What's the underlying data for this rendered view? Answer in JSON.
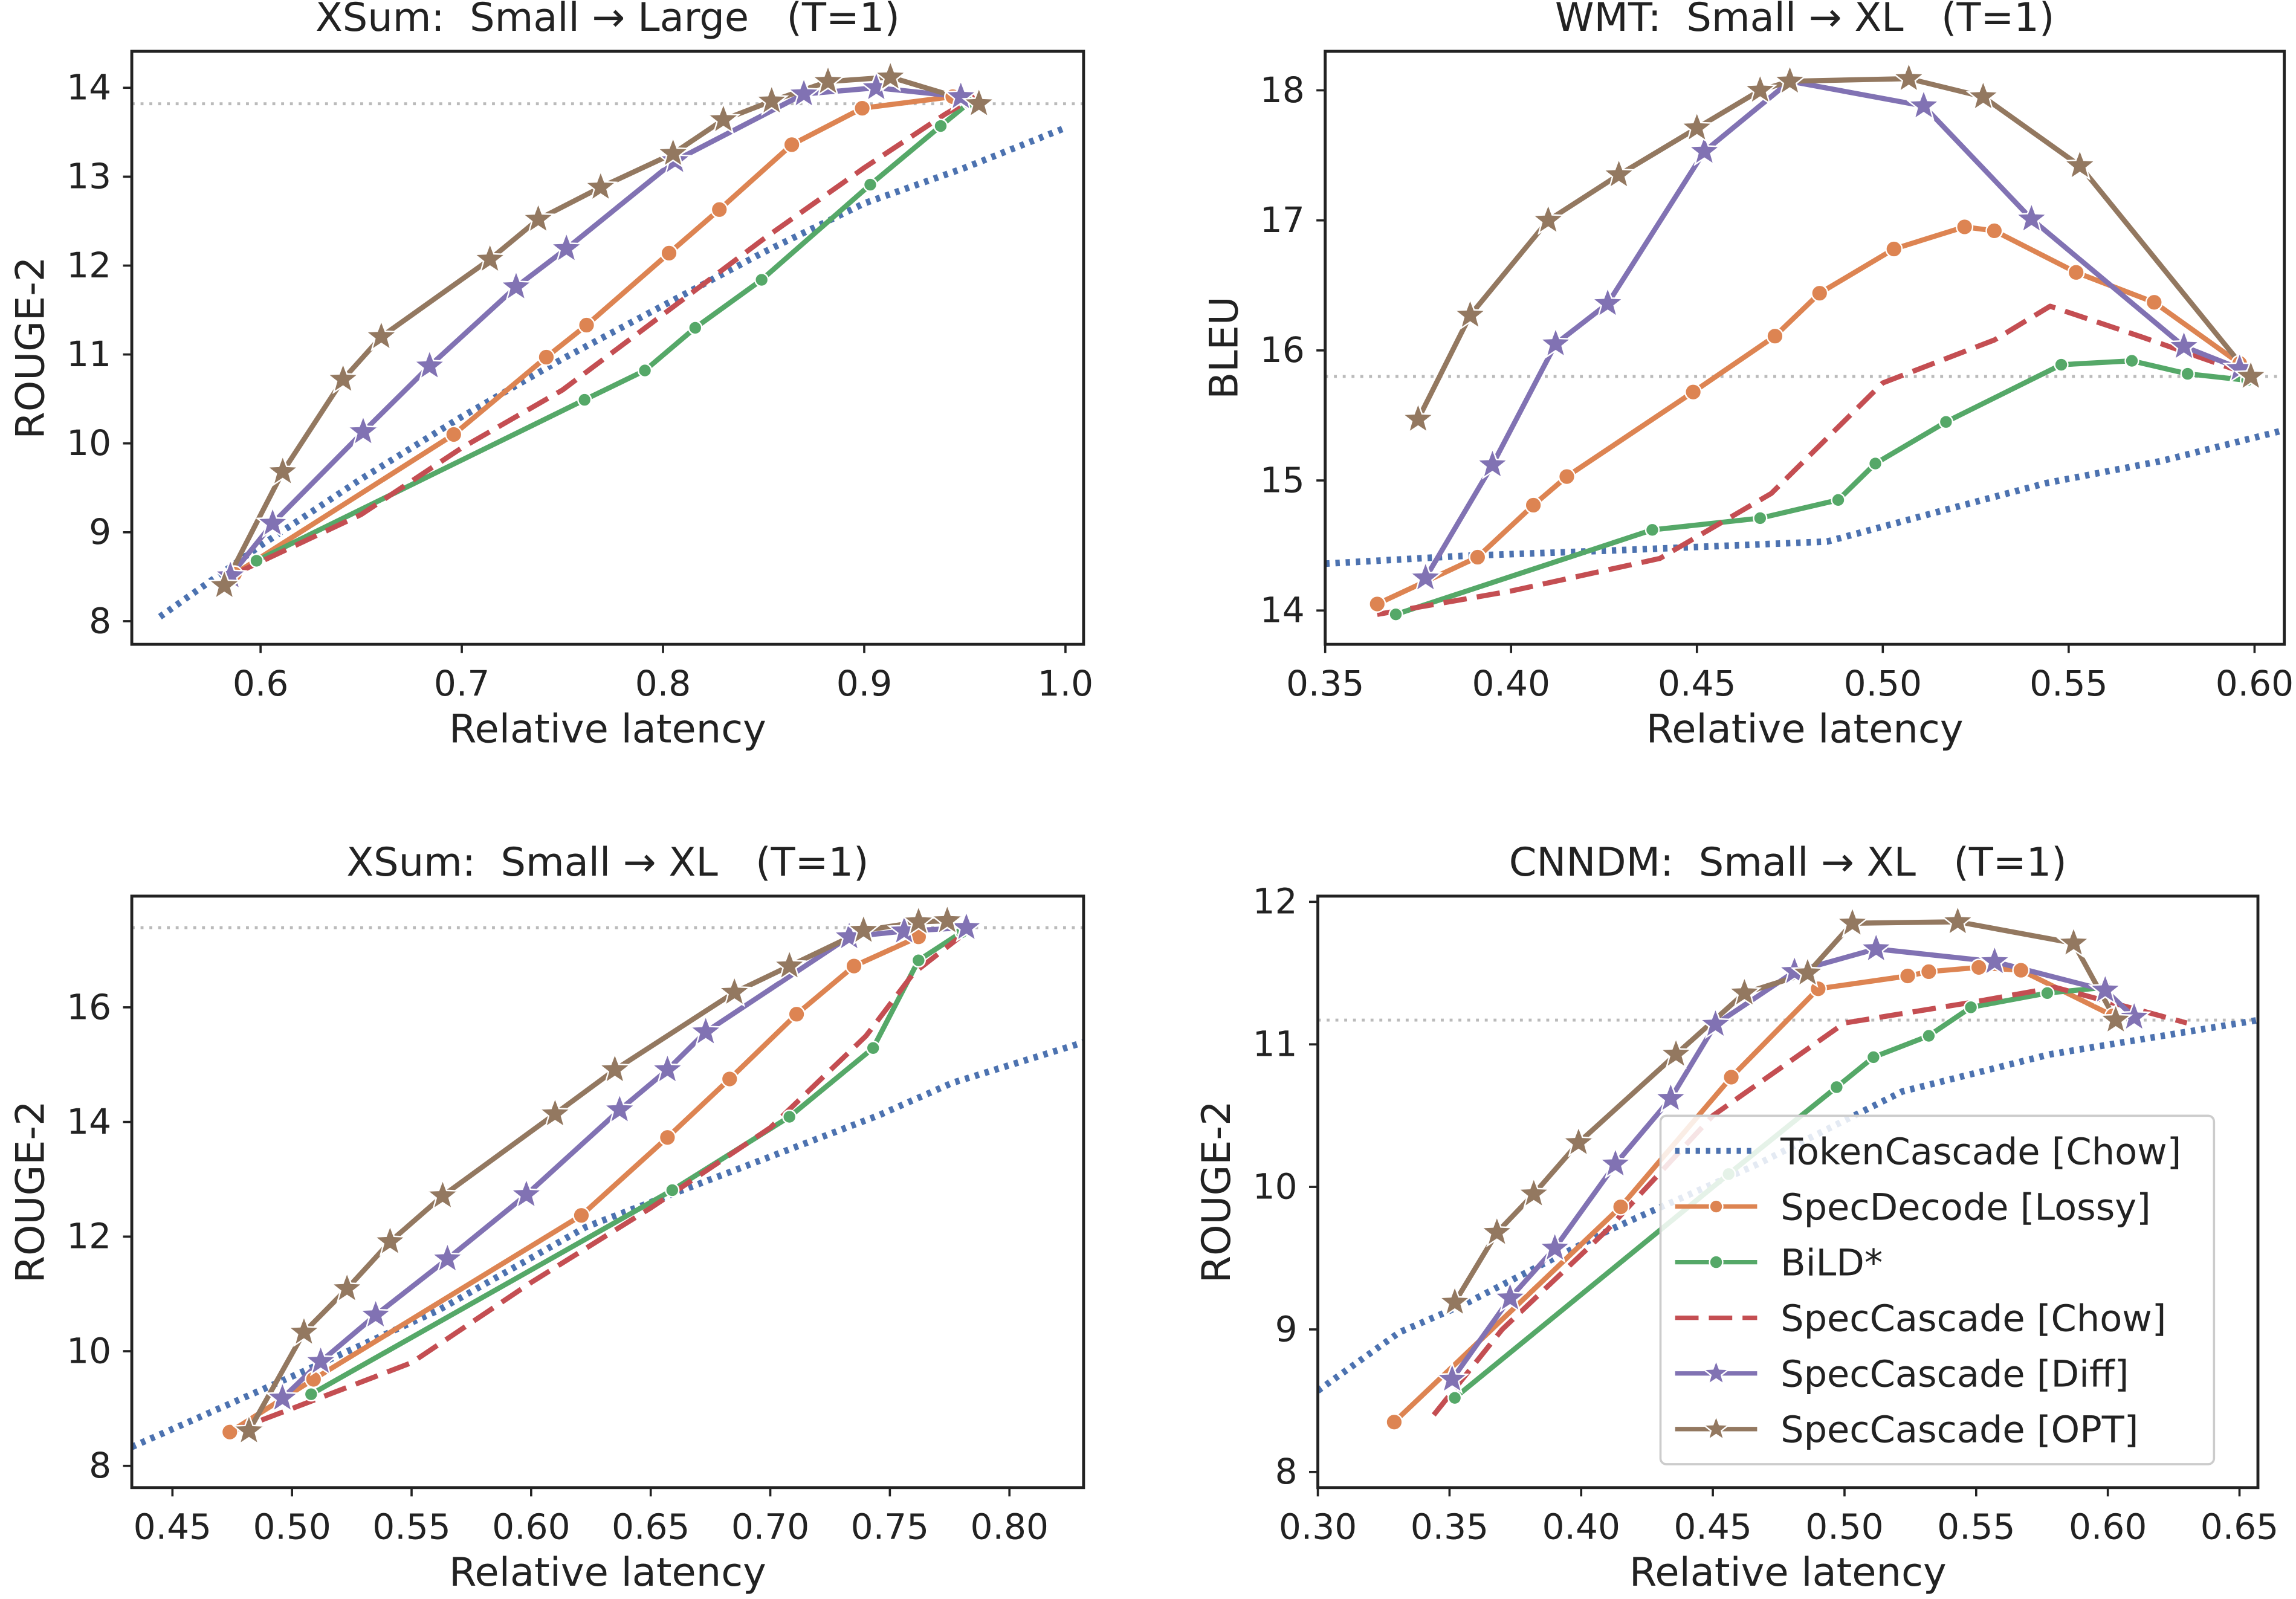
{
  "chart_data": [
    {
      "type": "line",
      "title": "XSum:  Small → Large   (T=1)",
      "xlabel": "Relative latency",
      "ylabel": "ROUGE-2",
      "xlim": [
        0.536,
        1.009
      ],
      "ylim": [
        7.74,
        14.41
      ],
      "xticks": [
        0.6,
        0.7,
        0.8,
        0.9,
        {
          "value": 1,
          "label": "1.0"
        }
      ],
      "yticks": [
        8,
        9,
        10,
        11,
        12,
        13,
        14
      ],
      "reference_line": 13.82,
      "series": [
        {
          "color": "#4c72b0",
          "linestyle": "dotted",
          "marker": "none",
          "x": [
            0.55,
            0.6,
            0.65,
            0.7,
            0.75,
            0.8,
            0.85,
            0.9,
            0.95,
            1.0
          ],
          "values": [
            8.05,
            8.85,
            9.6,
            10.3,
            10.95,
            11.55,
            12.15,
            12.7,
            13.1,
            13.55
          ]
        },
        {
          "color": "#dd8452",
          "linestyle": "solid",
          "marker": "circle",
          "x": [
            0.587,
            0.696,
            0.742,
            0.762,
            0.803,
            0.828,
            0.864,
            0.899,
            0.944
          ],
          "values": [
            8.53,
            10.1,
            10.97,
            11.33,
            12.14,
            12.63,
            13.36,
            13.77,
            13.9
          ]
        },
        {
          "color": "#55a868",
          "linestyle": "solid",
          "marker": "circle",
          "x": [
            0.598,
            0.761,
            0.791,
            0.816,
            0.849,
            0.903,
            0.938,
            0.952
          ],
          "values": [
            8.68,
            10.49,
            10.82,
            11.3,
            11.84,
            12.91,
            13.57,
            13.83
          ]
        },
        {
          "color": "#c44e52",
          "linestyle": "dashed",
          "marker": "none",
          "x": [
            0.587,
            0.65,
            0.7,
            0.75,
            0.8,
            0.85,
            0.9,
            0.94,
            0.955
          ],
          "values": [
            8.53,
            9.2,
            9.95,
            10.6,
            11.45,
            12.3,
            13.1,
            13.7,
            13.9
          ]
        },
        {
          "color": "#8172b3",
          "linestyle": "solid",
          "marker": "star",
          "x": [
            0.585,
            0.606,
            0.651,
            0.684,
            0.727,
            0.752,
            0.806,
            0.87,
            0.906,
            0.948
          ],
          "values": [
            8.51,
            9.1,
            10.13,
            10.87,
            11.76,
            12.19,
            13.18,
            13.93,
            14.0,
            13.9
          ]
        },
        {
          "color": "#937860",
          "linestyle": "solid",
          "marker": "star",
          "x": [
            0.582,
            0.611,
            0.641,
            0.66,
            0.714,
            0.738,
            0.769,
            0.805,
            0.83,
            0.854,
            0.882,
            0.913,
            0.957
          ],
          "values": [
            8.4,
            9.68,
            10.72,
            11.2,
            12.07,
            12.52,
            12.88,
            13.26,
            13.64,
            13.85,
            14.07,
            14.12,
            13.82
          ]
        }
      ]
    },
    {
      "type": "line",
      "title": "WMT:  Small → XL   (T=1)",
      "xlabel": "Relative latency",
      "ylabel": "BLEU",
      "xlim": [
        0.35,
        0.608
      ],
      "ylim": [
        13.74,
        18.3
      ],
      "xticks": [
        0.35,
        {
          "value": 0.4,
          "label": "0.40"
        },
        0.45,
        {
          "value": 0.5,
          "label": "0.50"
        },
        0.55,
        {
          "value": 0.6,
          "label": "0.60"
        }
      ],
      "yticks": [
        14,
        15,
        16,
        17,
        18
      ],
      "reference_line": 15.8,
      "series": [
        {
          "color": "#4c72b0",
          "linestyle": "dotted",
          "marker": "none",
          "x": [
            0.35,
            0.387,
            0.426,
            0.485,
            0.515,
            0.544,
            0.575,
            0.607
          ],
          "values": [
            14.36,
            14.42,
            14.46,
            14.53,
            14.76,
            14.98,
            15.15,
            15.38
          ]
        },
        {
          "color": "#dd8452",
          "linestyle": "solid",
          "marker": "circle",
          "x": [
            0.364,
            0.391,
            0.406,
            0.415,
            0.449,
            0.471,
            0.483,
            0.503,
            0.522,
            0.53,
            0.552,
            0.573,
            0.596
          ],
          "values": [
            14.05,
            14.41,
            14.81,
            15.03,
            15.68,
            16.11,
            16.44,
            16.78,
            16.95,
            16.92,
            16.6,
            16.37,
            15.9
          ]
        },
        {
          "color": "#55a868",
          "linestyle": "solid",
          "marker": "circle",
          "x": [
            0.369,
            0.438,
            0.467,
            0.488,
            0.498,
            0.517,
            0.548,
            0.567,
            0.582,
            0.598
          ],
          "values": [
            13.97,
            14.62,
            14.71,
            14.85,
            15.13,
            15.45,
            15.89,
            15.92,
            15.82,
            15.77
          ]
        },
        {
          "color": "#c44e52",
          "linestyle": "dashed",
          "marker": "none",
          "x": [
            0.364,
            0.4,
            0.44,
            0.47,
            0.5,
            0.53,
            0.545,
            0.57,
            0.595
          ],
          "values": [
            13.97,
            14.15,
            14.4,
            14.9,
            15.75,
            16.08,
            16.34,
            16.1,
            15.85
          ]
        },
        {
          "color": "#8172b3",
          "linestyle": "solid",
          "marker": "star",
          "x": [
            0.377,
            0.395,
            0.412,
            0.426,
            0.452,
            0.475,
            0.511,
            0.54,
            0.581,
            0.596
          ],
          "values": [
            14.25,
            15.12,
            16.05,
            16.36,
            17.53,
            18.07,
            17.88,
            17.01,
            16.03,
            15.86
          ]
        },
        {
          "color": "#937860",
          "linestyle": "solid",
          "marker": "star",
          "x": [
            0.375,
            0.389,
            0.41,
            0.429,
            0.45,
            0.467,
            0.475,
            0.507,
            0.527,
            0.553,
            0.599
          ],
          "values": [
            15.47,
            16.27,
            17.0,
            17.35,
            17.71,
            18.0,
            18.07,
            18.09,
            17.95,
            17.42,
            15.8
          ]
        }
      ]
    },
    {
      "type": "line",
      "title": "XSum:  Small → XL   (T=1)",
      "xlabel": "Relative latency",
      "ylabel": "ROUGE-2",
      "xlim": [
        0.433,
        0.831
      ],
      "ylim": [
        7.62,
        17.94
      ],
      "xticks": [
        0.45,
        {
          "value": 0.5,
          "label": "0.50"
        },
        0.55,
        {
          "value": 0.6,
          "label": "0.60"
        },
        0.65,
        {
          "value": 0.7,
          "label": "0.70"
        },
        0.75,
        {
          "value": 0.8,
          "label": "0.80"
        }
      ],
      "yticks": [
        8,
        10,
        12,
        14,
        16
      ],
      "reference_line": 17.39,
      "series": [
        {
          "color": "#4c72b0",
          "linestyle": "dotted",
          "marker": "none",
          "x": [
            0.433,
            0.5,
            0.561,
            0.623,
            0.684,
            0.745,
            0.776,
            0.831
          ],
          "values": [
            8.33,
            9.56,
            10.71,
            12.17,
            13.14,
            14.11,
            14.68,
            15.39
          ]
        },
        {
          "color": "#dd8452",
          "linestyle": "solid",
          "marker": "circle",
          "x": [
            0.474,
            0.509,
            0.621,
            0.657,
            0.683,
            0.711,
            0.735,
            0.762
          ],
          "values": [
            8.59,
            9.51,
            12.37,
            13.73,
            14.75,
            15.88,
            16.72,
            17.23
          ]
        },
        {
          "color": "#55a868",
          "linestyle": "solid",
          "marker": "circle",
          "x": [
            0.508,
            0.659,
            0.708,
            0.743,
            0.762,
            0.78
          ],
          "values": [
            9.25,
            12.81,
            14.09,
            15.29,
            16.82,
            17.31
          ]
        },
        {
          "color": "#c44e52",
          "linestyle": "dashed",
          "marker": "none",
          "x": [
            0.474,
            0.5,
            0.55,
            0.6,
            0.65,
            0.7,
            0.74,
            0.76,
            0.78
          ],
          "values": [
            8.59,
            9.0,
            9.8,
            11.2,
            12.5,
            13.9,
            15.5,
            16.6,
            17.25
          ]
        },
        {
          "color": "#8172b3",
          "linestyle": "solid",
          "marker": "star",
          "x": [
            0.496,
            0.512,
            0.535,
            0.565,
            0.598,
            0.637,
            0.657,
            0.673,
            0.733,
            0.756,
            0.782
          ],
          "values": [
            9.18,
            9.82,
            10.63,
            11.61,
            12.73,
            14.21,
            14.91,
            15.57,
            17.23,
            17.33,
            17.39
          ]
        },
        {
          "color": "#937860",
          "linestyle": "solid",
          "marker": "star",
          "x": [
            0.482,
            0.505,
            0.523,
            0.541,
            0.563,
            0.61,
            0.635,
            0.685,
            0.708,
            0.739,
            0.762,
            0.774
          ],
          "values": [
            8.61,
            10.33,
            11.09,
            11.91,
            12.71,
            14.14,
            14.91,
            16.26,
            16.72,
            17.34,
            17.49,
            17.51
          ]
        }
      ]
    },
    {
      "type": "line",
      "title": "CNNDM:  Small → XL   (T=1)",
      "xlabel": "Relative latency",
      "ylabel": "ROUGE-2",
      "xlim": [
        0.3,
        0.657
      ],
      "ylim": [
        7.89,
        12.04
      ],
      "xticks": [
        {
          "value": 0.3,
          "label": "0.30"
        },
        0.35,
        {
          "value": 0.4,
          "label": "0.40"
        },
        0.45,
        {
          "value": 0.5,
          "label": "0.50"
        },
        0.55,
        {
          "value": 0.6,
          "label": "0.60"
        },
        0.65
      ],
      "yticks": [
        8,
        9,
        10,
        11,
        12
      ],
      "reference_line": 11.17,
      "legend": "lower right",
      "series": [
        {
          "name": "TokenCascade [Chow]",
          "color": "#4c72b0",
          "linestyle": "dotted",
          "marker": "none",
          "x": [
            0.3,
            0.331,
            0.356,
            0.411,
            0.467,
            0.522,
            0.578,
            0.657
          ],
          "values": [
            8.57,
            8.98,
            9.18,
            9.7,
            10.16,
            10.67,
            10.93,
            11.17
          ]
        },
        {
          "name": "SpecDecode [Lossy]",
          "color": "#dd8452",
          "linestyle": "solid",
          "marker": "circle",
          "x": [
            0.329,
            0.415,
            0.457,
            0.49,
            0.524,
            0.532,
            0.551,
            0.567,
            0.602
          ],
          "values": [
            8.35,
            9.86,
            10.77,
            11.39,
            11.48,
            11.51,
            11.54,
            11.52,
            11.2
          ]
        },
        {
          "name": "BiLD*",
          "color": "#55a868",
          "linestyle": "solid",
          "marker": "circle",
          "x": [
            0.352,
            0.456,
            0.497,
            0.511,
            0.532,
            0.548,
            0.577,
            0.599
          ],
          "values": [
            8.52,
            10.09,
            10.7,
            10.91,
            11.06,
            11.26,
            11.36,
            11.4
          ]
        },
        {
          "name": "SpecCascade [Chow]",
          "color": "#c44e52",
          "linestyle": "dashed",
          "marker": "none",
          "x": [
            0.344,
            0.37,
            0.41,
            0.45,
            0.5,
            0.55,
            0.58,
            0.6,
            0.63
          ],
          "values": [
            8.4,
            9.0,
            9.7,
            10.5,
            11.15,
            11.3,
            11.4,
            11.3,
            11.15
          ]
        },
        {
          "name": "SpecCascade [Diff]",
          "color": "#8172b3",
          "linestyle": "solid",
          "marker": "star",
          "x": [
            0.351,
            0.373,
            0.39,
            0.413,
            0.434,
            0.451,
            0.481,
            0.512,
            0.557,
            0.599,
            0.61
          ],
          "values": [
            8.65,
            9.22,
            9.57,
            10.16,
            10.62,
            11.14,
            11.51,
            11.67,
            11.58,
            11.38,
            11.19
          ]
        },
        {
          "name": "SpecCascade [OPT]",
          "color": "#937860",
          "linestyle": "solid",
          "marker": "star",
          "x": [
            0.352,
            0.368,
            0.382,
            0.399,
            0.436,
            0.462,
            0.486,
            0.503,
            0.543,
            0.587,
            0.603
          ],
          "values": [
            9.19,
            9.68,
            9.95,
            10.31,
            10.93,
            11.36,
            11.5,
            11.85,
            11.86,
            11.71,
            11.17
          ]
        }
      ]
    }
  ]
}
